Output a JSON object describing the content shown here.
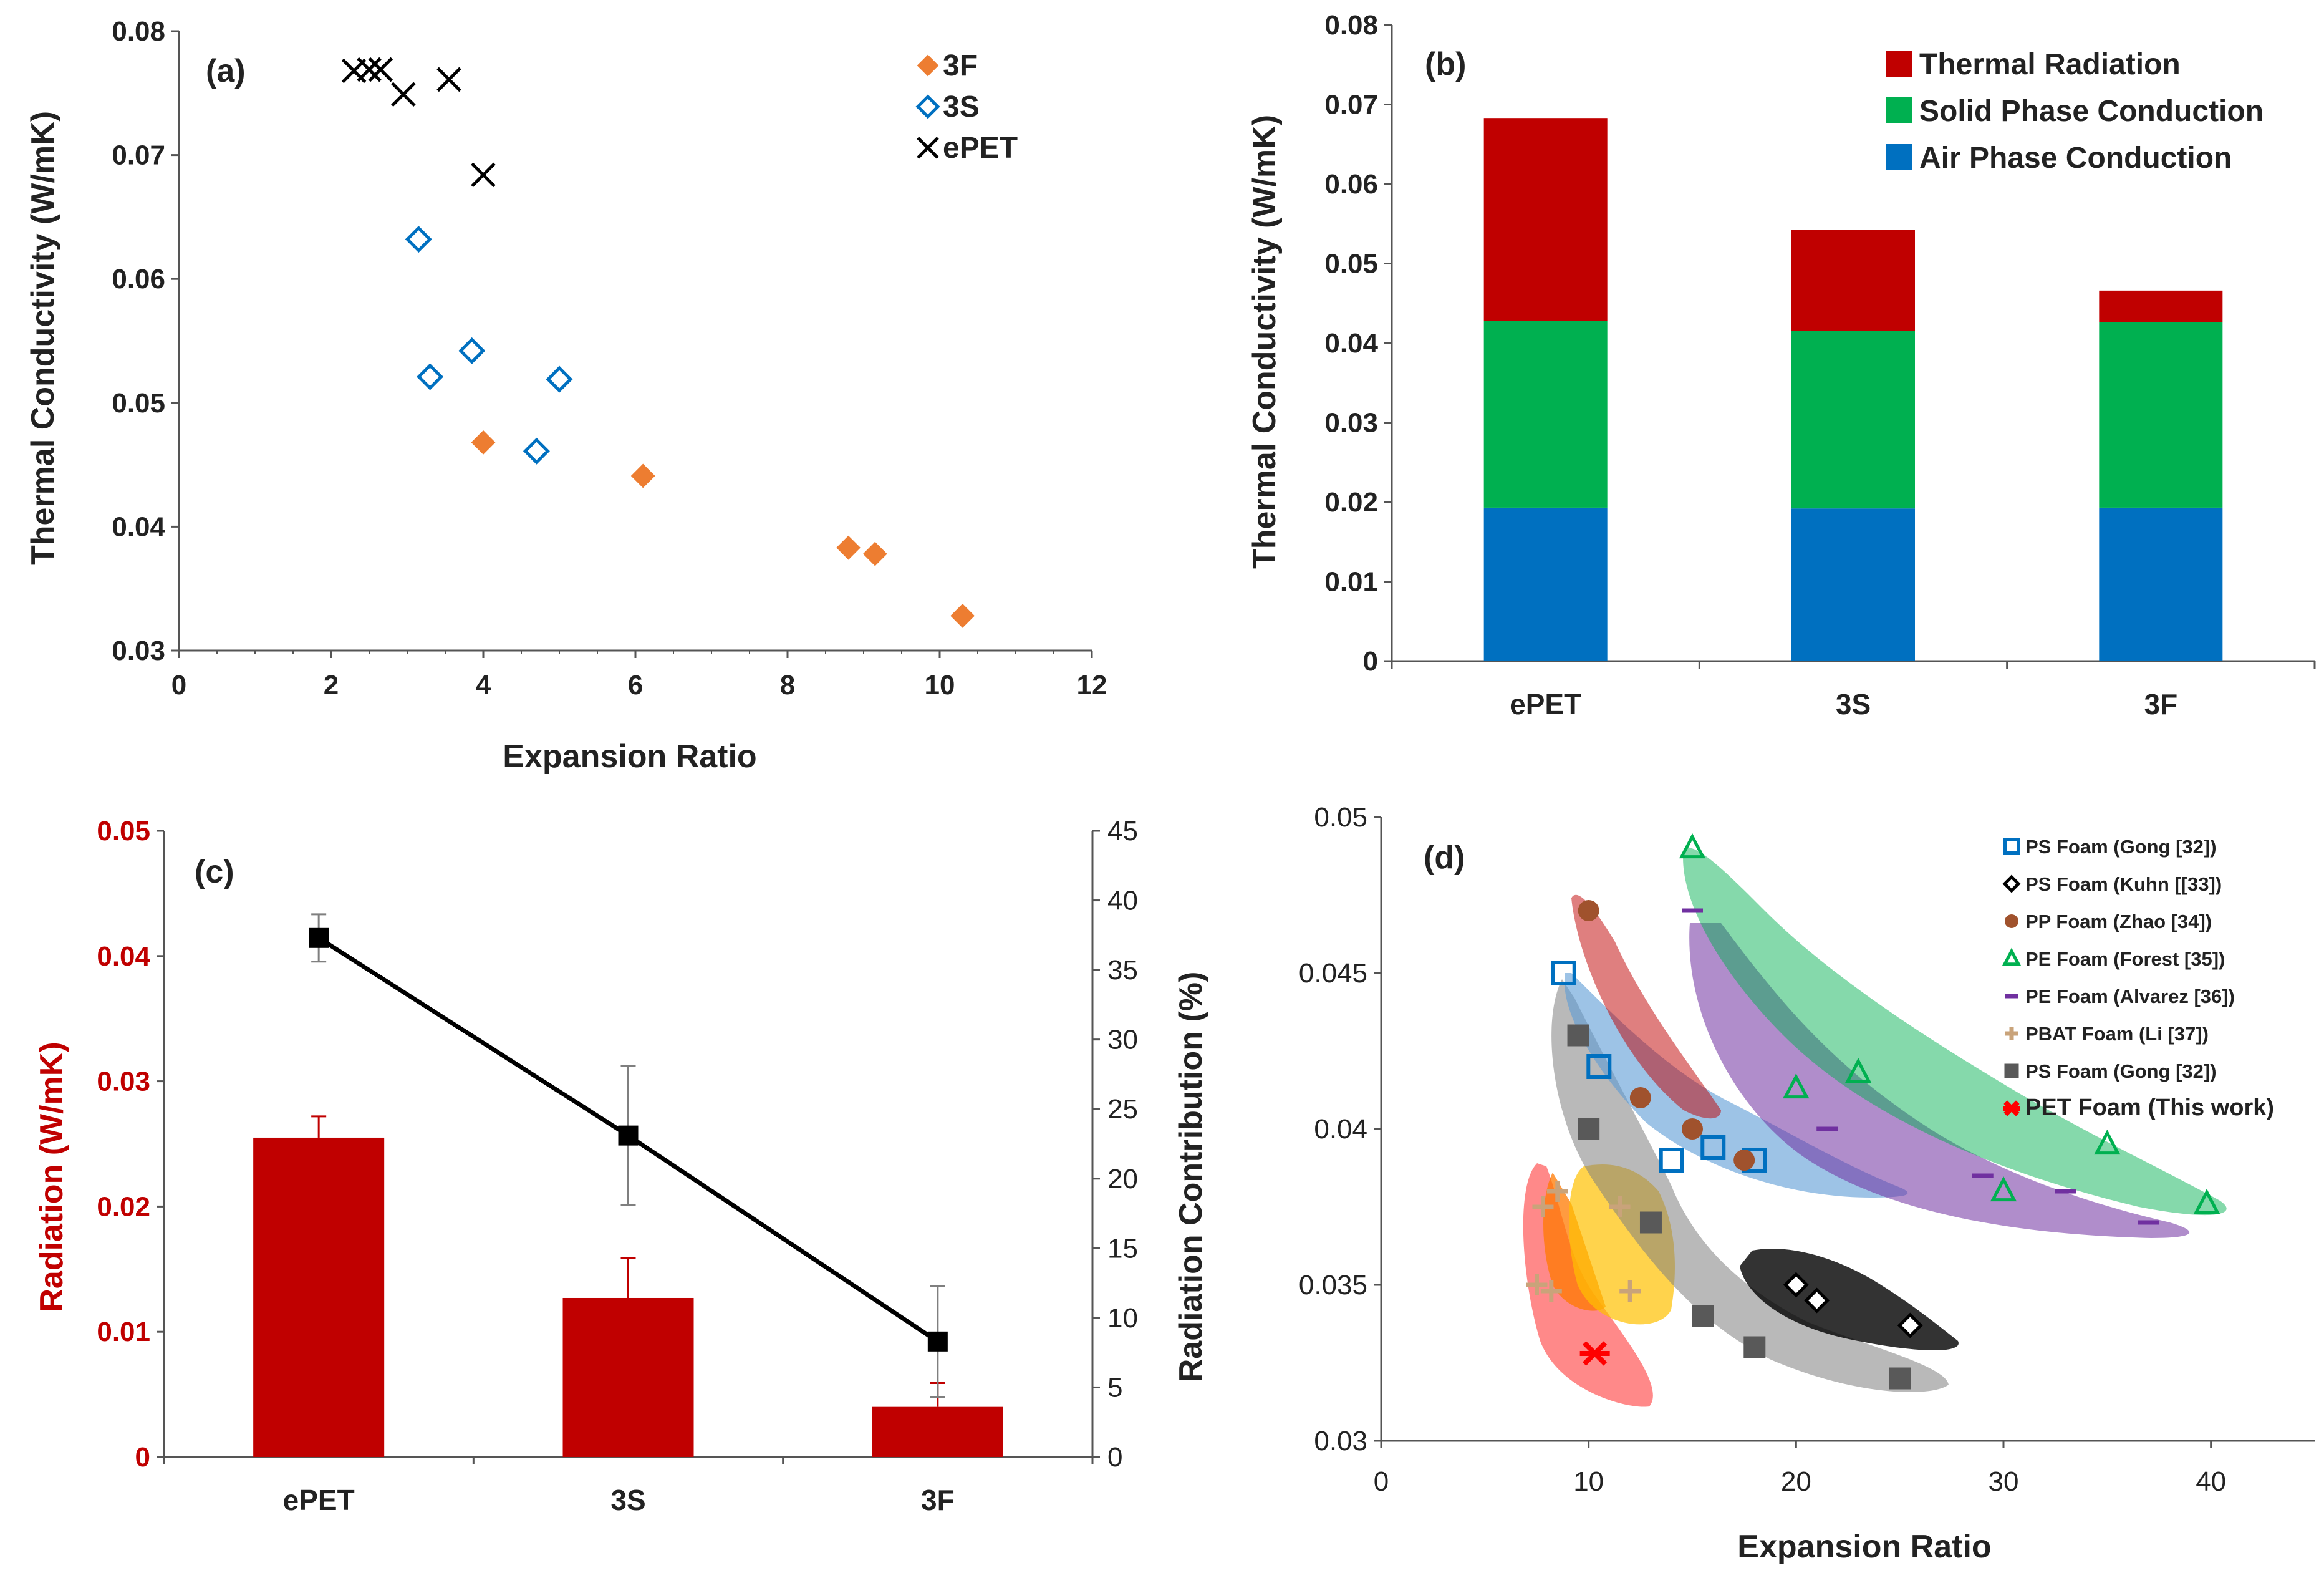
{
  "colors": {
    "orange": "#ED7D31",
    "blue": "#0070C0",
    "black": "#000000",
    "red": "#C00000",
    "green": "#00B050",
    "barblue": "#0070C0",
    "purple": "#7030A0",
    "brown": "#A0522D",
    "lightgreen": "#00B050",
    "gray": "#595959",
    "pbat": "#C9A37A",
    "pet": "#FF0000"
  },
  "chart_data": [
    {
      "panel": "a",
      "type": "scatter",
      "title": "(a)",
      "xlabel": "Expansion Ratio",
      "ylabel": "Thermal Conductivity (W/mK)",
      "xlim": [
        0,
        12
      ],
      "ylim": [
        0.03,
        0.08
      ],
      "xticks": [
        "0",
        "2",
        "4",
        "6",
        "8",
        "10",
        "12"
      ],
      "yticks": [
        "0.03",
        "0.04",
        "0.05",
        "0.06",
        "0.07",
        "0.08"
      ],
      "legend_position": "top-right",
      "series": [
        {
          "name": "3F",
          "marker": "filled-diamond",
          "color": "#ED7D31",
          "points": [
            [
              4.0,
              0.0468
            ],
            [
              6.1,
              0.0441
            ],
            [
              8.8,
              0.0383
            ],
            [
              9.15,
              0.0378
            ],
            [
              10.3,
              0.0328
            ]
          ]
        },
        {
          "name": "3S",
          "marker": "open-diamond",
          "color": "#0070C0",
          "points": [
            [
              3.15,
              0.0632
            ],
            [
              3.3,
              0.0521
            ],
            [
              3.85,
              0.0542
            ],
            [
              4.7,
              0.0461
            ],
            [
              5.0,
              0.0519
            ]
          ]
        },
        {
          "name": "ePET",
          "marker": "x",
          "color": "#000000",
          "points": [
            [
              2.3,
              0.0768
            ],
            [
              2.5,
              0.0769
            ],
            [
              2.65,
              0.0769
            ],
            [
              2.95,
              0.0749
            ],
            [
              3.55,
              0.0761
            ],
            [
              4.0,
              0.0684
            ]
          ]
        }
      ]
    },
    {
      "panel": "b",
      "type": "bar",
      "stacked": true,
      "title": "(b)",
      "xlabel": "",
      "ylabel": "Thermal Conductivity (W/mK)",
      "ylim": [
        0,
        0.08
      ],
      "yticks": [
        "0",
        "0.01",
        "0.02",
        "0.03",
        "0.04",
        "0.05",
        "0.06",
        "0.07",
        "0.08"
      ],
      "categories": [
        "ePET",
        "3S",
        "3F"
      ],
      "legend_position": "top-right",
      "series": [
        {
          "name": "Air Phase Conduction",
          "color": "#0070C0",
          "values": [
            0.0193,
            0.0192,
            0.0193
          ]
        },
        {
          "name": "Solid Phase Conduction",
          "color": "#00B050",
          "values": [
            0.0235,
            0.0223,
            0.0233
          ]
        },
        {
          "name": "Thermal Radiation",
          "color": "#C00000",
          "values": [
            0.0255,
            0.0127,
            0.004
          ]
        }
      ],
      "legend_order": [
        "Thermal Radiation",
        "Solid Phase Conduction",
        "Air Phase Conduction"
      ]
    },
    {
      "panel": "c",
      "type": "bar",
      "title": "(c)",
      "xlabel": "",
      "ylabel": "Radiation (W/mK)",
      "y2label": "Radiation Contribution (%)",
      "categories": [
        "ePET",
        "3S",
        "3F"
      ],
      "ylim": [
        0,
        0.05
      ],
      "yticks": [
        "0",
        "0.01",
        "0.02",
        "0.03",
        "0.04",
        "0.05"
      ],
      "y2lim": [
        0,
        45
      ],
      "y2ticks": [
        "0",
        "5",
        "10",
        "15",
        "20",
        "25",
        "30",
        "35",
        "40",
        "45"
      ],
      "bars": {
        "name": "Radiation",
        "color": "#C00000",
        "values": [
          0.0255,
          0.0127,
          0.004
        ],
        "errors": [
          0.0017,
          0.0032,
          0.0019
        ]
      },
      "line": {
        "name": "Radiation Contribution",
        "color": "#000000",
        "values": [
          37.3,
          23.1,
          8.3
        ],
        "errors": [
          1.7,
          5.0,
          4.0
        ]
      }
    },
    {
      "panel": "d",
      "type": "scatter",
      "title": "(d)",
      "xlabel": "Expansion Ratio",
      "ylabel": "",
      "xlim": [
        0,
        45
      ],
      "ylim": [
        0.03,
        0.05
      ],
      "xticks": [
        "0",
        "10",
        "20",
        "30",
        "40"
      ],
      "yticks": [
        "0.03",
        "0.035",
        "0.04",
        "0.045",
        "0.05"
      ],
      "legend_position": "top-right",
      "series": [
        {
          "name": "PS Foam (Gong [32])",
          "marker": "open-square",
          "color": "#0070C0",
          "points": [
            [
              8.8,
              0.045
            ],
            [
              10.5,
              0.042
            ],
            [
              14,
              0.039
            ],
            [
              16,
              0.0394
            ],
            [
              18,
              0.039
            ]
          ]
        },
        {
          "name": "PS Foam (Kuhn [[33])",
          "marker": "open-diamond",
          "color": "#000000",
          "points": [
            [
              20,
              0.035
            ],
            [
              21,
              0.0345
            ],
            [
              25.5,
              0.0337
            ]
          ]
        },
        {
          "name": "PP Foam (Zhao [34])",
          "marker": "circle",
          "color": "#A0522D",
          "points": [
            [
              10,
              0.047
            ],
            [
              12.5,
              0.041
            ],
            [
              15,
              0.04
            ],
            [
              17.5,
              0.039
            ]
          ]
        },
        {
          "name": "PE Foam (Forest [35])",
          "marker": "open-triangle",
          "color": "#00B050",
          "points": [
            [
              15,
              0.049
            ],
            [
              20,
              0.0413
            ],
            [
              23,
              0.0418
            ],
            [
              30,
              0.038
            ],
            [
              35,
              0.0395
            ],
            [
              39.8,
              0.0376
            ]
          ]
        },
        {
          "name": "PE Foam (Alvarez [36])",
          "marker": "dash",
          "color": "#7030A0",
          "points": [
            [
              15,
              0.047
            ],
            [
              21.5,
              0.04
            ],
            [
              29,
              0.0385
            ],
            [
              33,
              0.038
            ],
            [
              37,
              0.037
            ]
          ]
        },
        {
          "name": "PBAT Foam (Li [37])",
          "marker": "plus",
          "color": "#C9A37A",
          "points": [
            [
              7.8,
              0.0375
            ],
            [
              8.5,
              0.038
            ],
            [
              11.5,
              0.0375
            ],
            [
              12,
              0.0348
            ],
            [
              7.5,
              0.035
            ],
            [
              8.2,
              0.0348
            ]
          ]
        },
        {
          "name": "PS Foam (Gong [32])",
          "marker": "filled-square",
          "color": "#595959",
          "points": [
            [
              9.5,
              0.043
            ],
            [
              10,
              0.04
            ],
            [
              13,
              0.037
            ],
            [
              15.5,
              0.034
            ],
            [
              18,
              0.033
            ],
            [
              25,
              0.032
            ]
          ]
        },
        {
          "name": "PET Foam (This work)",
          "marker": "asterisk",
          "color": "#FF0000",
          "points": [
            [
              10.3,
              0.0328
            ]
          ]
        }
      ]
    }
  ]
}
